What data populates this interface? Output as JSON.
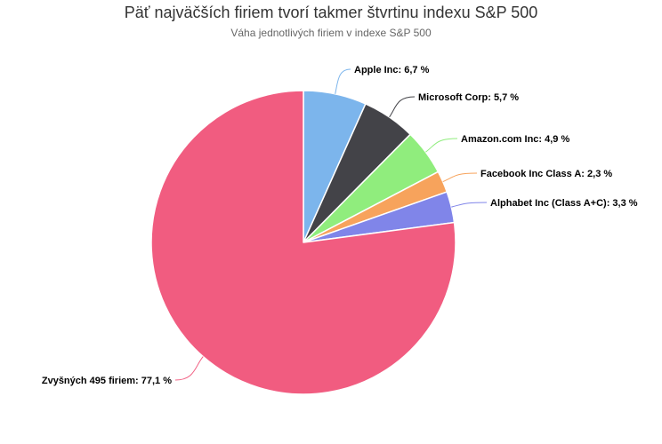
{
  "chart_data": {
    "type": "pie",
    "title": "Päť najväčších firiem tvorí takmer štvrtinu indexu S&P 500",
    "subtitle": "Váha jednotlivých firiem v indexe S&P 500",
    "slices": [
      {
        "name": "Apple Inc",
        "value": 6.7,
        "label": "Apple Inc: 6,7 %",
        "color": "#7cb5ec"
      },
      {
        "name": "Microsoft Corp",
        "value": 5.7,
        "label": "Microsoft Corp: 5,7 %",
        "color": "#434348"
      },
      {
        "name": "Amazon.com Inc",
        "value": 4.9,
        "label": "Amazon.com Inc: 4,9 %",
        "color": "#90ed7d"
      },
      {
        "name": "Facebook Inc Class A",
        "value": 2.3,
        "label": "Facebook Inc Class A: 2,3 %",
        "color": "#f7a35c"
      },
      {
        "name": "Alphabet Inc (Class A+C)",
        "value": 3.3,
        "label": "Alphabet Inc (Class A+C): 3,3 %",
        "color": "#8085e9"
      },
      {
        "name": "Zvyšných 495 firiem",
        "value": 77.1,
        "label": "Zvyšných 495 firiem: 77,1 %",
        "color": "#f15c80"
      }
    ]
  }
}
